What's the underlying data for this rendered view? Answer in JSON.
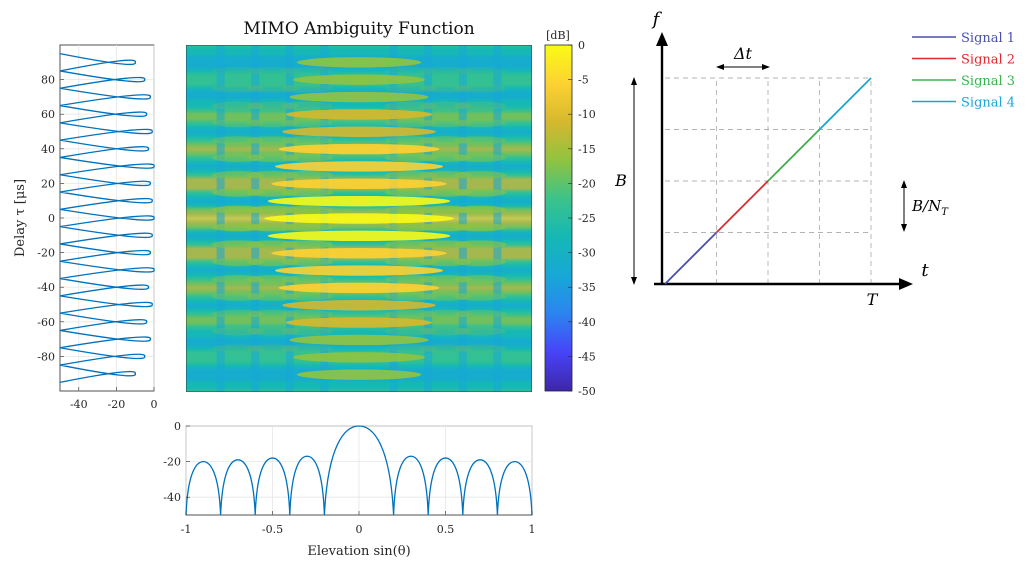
{
  "chart_data": [
    {
      "type": "heatmap",
      "title": "MIMO Ambiguity Function",
      "xlim": [
        -1,
        1
      ],
      "ylim": [
        -100,
        100
      ],
      "colorbar": {
        "unit_label": "[dB]",
        "range": [
          -50,
          0
        ],
        "ticks": [
          "0",
          "-5",
          "-10",
          "-15",
          "-20",
          "-25",
          "-30",
          "-35",
          "-40",
          "-45",
          "-50"
        ],
        "colormap": [
          "#3e26a8",
          "#4743f8",
          "#2c84f0",
          "#17a8d6",
          "#15b8b5",
          "#3bc38a",
          "#90c340",
          "#d5b82e",
          "#fdd232",
          "#f9fb15"
        ]
      }
    },
    {
      "type": "line",
      "description": "delay cut",
      "ylabel": "Delay τ [μs]",
      "xlim": [
        -50,
        0
      ],
      "ylim": [
        -100,
        100
      ],
      "xticks": [
        "-40",
        "-20",
        "0"
      ],
      "yticks": [
        "80",
        "60",
        "40",
        "20",
        "0",
        "-20",
        "-40",
        "-60",
        "-80"
      ],
      "lobe_centers": [
        -90,
        -80,
        -70,
        -60,
        -50,
        -40,
        -30,
        -20,
        -10,
        0,
        10,
        20,
        30,
        40,
        50,
        60,
        70,
        80,
        90
      ],
      "lobe_peaks": [
        -10,
        -5,
        -2,
        -4,
        -1,
        -3,
        0,
        -2,
        -1,
        0,
        -1,
        -2,
        0,
        -3,
        -1,
        -4,
        -2,
        -5,
        -10
      ],
      "color": "#0072bd"
    },
    {
      "type": "line",
      "description": "elevation cut",
      "xlabel": "Elevation sin(θ)",
      "xlim": [
        -1,
        1
      ],
      "ylim": [
        -50,
        0
      ],
      "xticks": [
        "-1",
        "-0.5",
        "0",
        "0.5",
        "1"
      ],
      "yticks": [
        "0",
        "-20",
        "-40"
      ],
      "main_lobe": {
        "center": 0,
        "peak": 0,
        "nulls": [
          -0.2,
          0.2
        ]
      },
      "lobe_centers": [
        -0.9,
        -0.7,
        -0.5,
        -0.3,
        0.3,
        0.5,
        0.7,
        0.9
      ],
      "lobe_peaks": [
        -20,
        -19,
        -18,
        -17,
        -17,
        -18,
        -19,
        -20
      ],
      "color": "#0072bd"
    },
    {
      "type": "line",
      "description": "frequency-time diagram",
      "x_axis_label": "t",
      "y_axis_label": "f",
      "annotations": {
        "B": "B",
        "delta_t": "Δt",
        "band": "B/N_T",
        "T": "T"
      },
      "series": [
        {
          "name": "Signal 1",
          "color": "#4a4fb5",
          "x": [
            0,
            1
          ],
          "y": [
            0,
            1
          ]
        },
        {
          "name": "Signal 2",
          "color": "#e0282e",
          "x": [
            1,
            2
          ],
          "y": [
            1,
            2
          ]
        },
        {
          "name": "Signal 3",
          "color": "#3db24a",
          "x": [
            2,
            3
          ],
          "y": [
            2,
            3
          ]
        },
        {
          "name": "Signal 4",
          "color": "#17a7d8",
          "x": [
            3,
            4
          ],
          "y": [
            3,
            4
          ]
        }
      ]
    }
  ]
}
